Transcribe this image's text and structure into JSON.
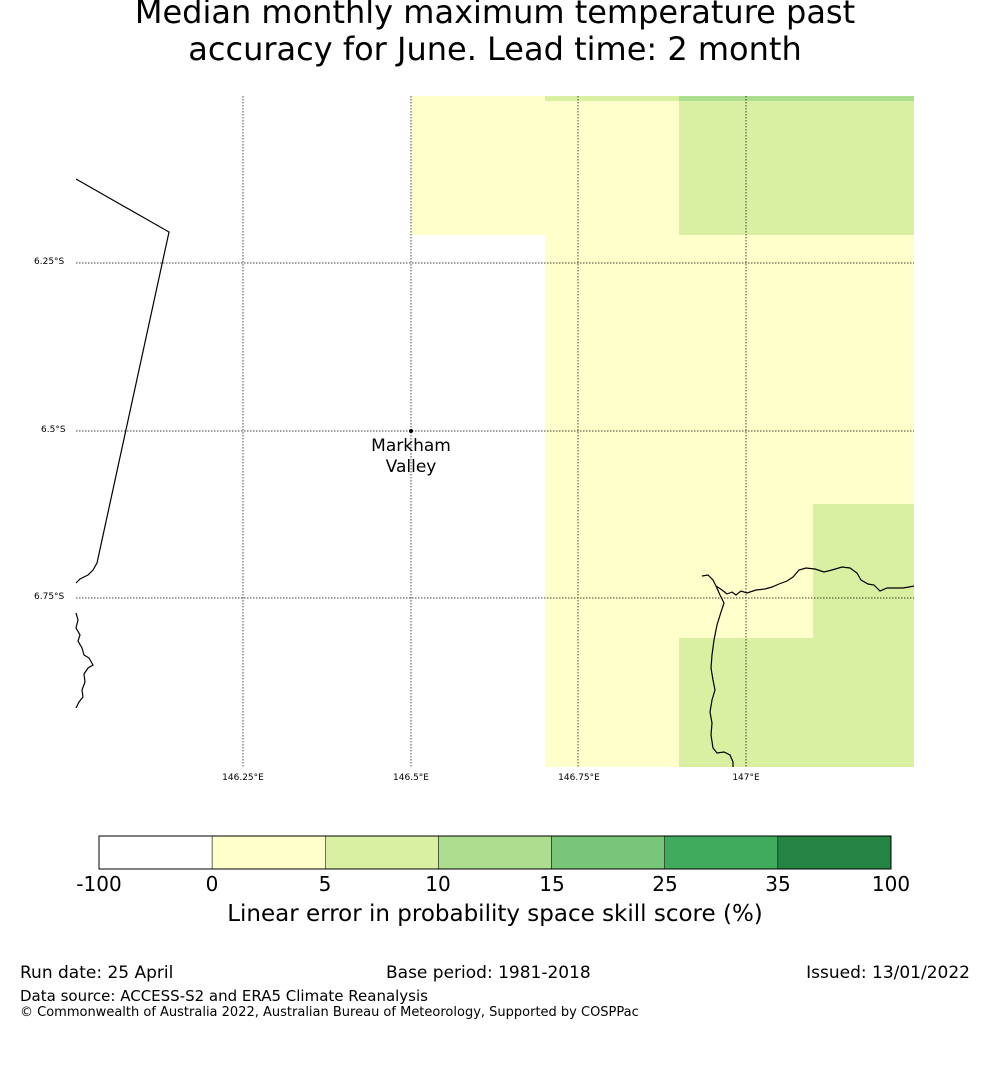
{
  "title": {
    "line1": "Median monthly maximum temperature past",
    "line2": "accuracy for June. Lead time: 2 month"
  },
  "map": {
    "lat_labels": [
      "6.25°S",
      "6.5°S",
      "6.75°S"
    ],
    "lon_labels": [
      "146.25°E",
      "146.5°E",
      "146.75°E",
      "147°E"
    ],
    "place": {
      "name_line1": "Markham",
      "name_line2": "Valley"
    },
    "colors": {
      "cat_0_5": "#ffffcc",
      "cat_5_10": "#d9f0a3",
      "cat_10_15": "#addd8e",
      "land_outline": "#000000"
    }
  },
  "colorbar": {
    "ticks": [
      "-100",
      "0",
      "5",
      "10",
      "15",
      "25",
      "35",
      "100"
    ],
    "colors": [
      "#ffffff",
      "#ffffcc",
      "#d9f0a3",
      "#addd8e",
      "#78c679",
      "#41ab5d",
      "#238443"
    ],
    "label": "Linear error in probability space skill score (%)"
  },
  "footer": {
    "run_date": "Run date: 25 April",
    "base_period": "Base period: 1981-2018",
    "issued": "Issued: 13/01/2022",
    "data_source": "Data source: ACCESS-S2 and ERA5 Climate Reanalysis",
    "copyright": "© Commonwealth of Australia 2022, Australian Bureau of Meteorology, Supported by COSPPac"
  }
}
